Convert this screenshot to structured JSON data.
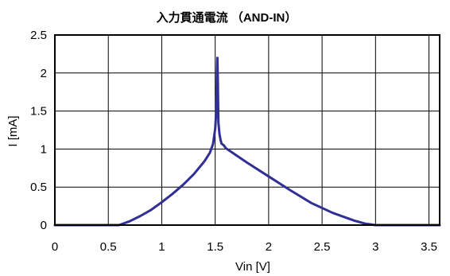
{
  "chart_data": {
    "type": "line",
    "title": "入力貫通電流 （AND-IN）",
    "xlabel": "Vin [V]",
    "ylabel": "I [mA]",
    "xlim": [
      0,
      3.6
    ],
    "ylim": [
      0,
      2.5
    ],
    "x_ticks": [
      "0",
      "0.5",
      "1",
      "1.5",
      "2",
      "2.5",
      "3",
      "3.5"
    ],
    "y_ticks": [
      "0",
      "0.5",
      "1",
      "1.5",
      "2",
      "2.5"
    ],
    "x_tick_values": [
      0,
      0.5,
      1,
      1.5,
      2,
      2.5,
      3,
      3.5
    ],
    "y_tick_values": [
      0,
      0.5,
      1,
      1.5,
      2,
      2.5
    ],
    "grid": true,
    "series": [
      {
        "color": "#2f2f96",
        "x": [
          0,
          0.6,
          0.7,
          0.8,
          0.9,
          1.0,
          1.1,
          1.2,
          1.3,
          1.4,
          1.45,
          1.48,
          1.5,
          1.51,
          1.515,
          1.52,
          1.525,
          1.53,
          1.54,
          1.55,
          1.56,
          1.58,
          1.6,
          1.8,
          2.0,
          2.2,
          2.4,
          2.6,
          2.8,
          2.9,
          2.95,
          3.0,
          3.6
        ],
        "y": [
          0,
          0,
          0.05,
          0.12,
          0.2,
          0.3,
          0.41,
          0.53,
          0.67,
          0.84,
          0.95,
          1.07,
          1.27,
          1.5,
          1.9,
          2.2,
          1.9,
          1.35,
          1.2,
          1.12,
          1.07,
          1.05,
          1.01,
          0.82,
          0.64,
          0.46,
          0.29,
          0.16,
          0.06,
          0.02,
          0.01,
          0,
          0
        ]
      }
    ]
  }
}
